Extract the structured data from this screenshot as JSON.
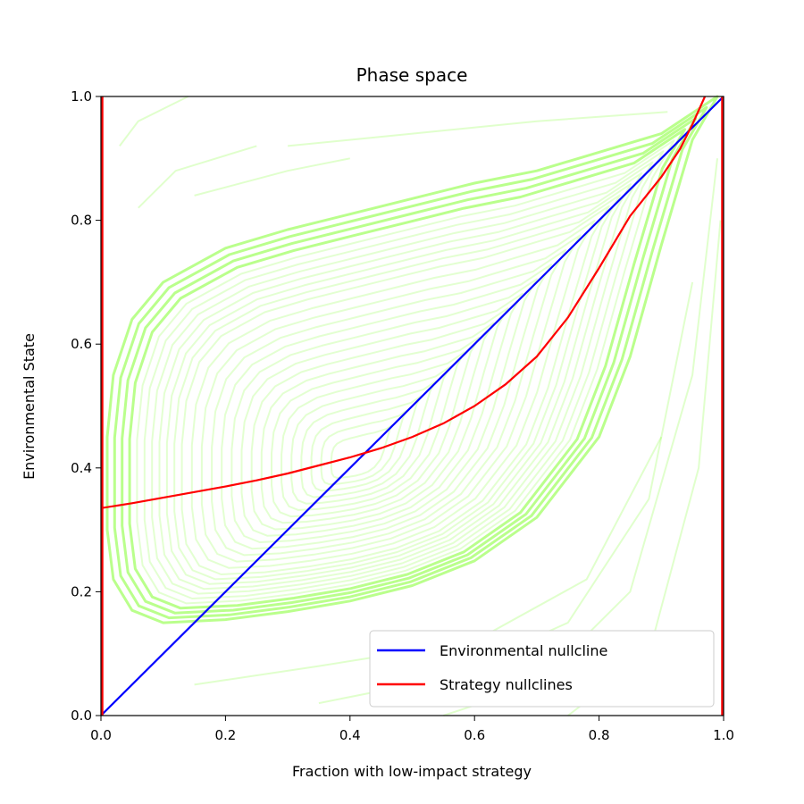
{
  "chart_data": {
    "type": "line",
    "title": "Phase space",
    "xlabel": "Fraction with low-impact strategy",
    "ylabel": "Environmental State",
    "xlim": [
      0.0,
      1.0
    ],
    "ylim": [
      0.0,
      1.0
    ],
    "xticks": [
      "0.0",
      "0.2",
      "0.4",
      "0.6",
      "0.8",
      "1.0"
    ],
    "yticks": [
      "0.0",
      "0.2",
      "0.4",
      "0.6",
      "0.8",
      "1.0"
    ],
    "grid": false,
    "legend_position": "lower right",
    "trajectory_color": "#66ff00",
    "series": [
      {
        "name": "Environmental nullcline",
        "color": "#0000ff",
        "x": [
          0.0,
          1.0
        ],
        "y": [
          0.0,
          1.0
        ]
      },
      {
        "name": "Strategy nullclines",
        "color": "#ff0000",
        "x": [
          0.0,
          0.05,
          0.1,
          0.15,
          0.2,
          0.25,
          0.3,
          0.35,
          0.4,
          0.45,
          0.5,
          0.55,
          0.6,
          0.65,
          0.7,
          0.75,
          0.8,
          0.85,
          0.9,
          0.93,
          0.95,
          0.97
        ],
        "y": [
          0.335,
          0.343,
          0.352,
          0.361,
          0.37,
          0.38,
          0.391,
          0.404,
          0.417,
          0.432,
          0.45,
          0.472,
          0.5,
          0.535,
          0.58,
          0.643,
          0.723,
          0.807,
          0.87,
          0.915,
          0.955,
          1.0
        ],
        "vertical_lines_x": [
          0.0,
          1.0
        ]
      }
    ]
  }
}
